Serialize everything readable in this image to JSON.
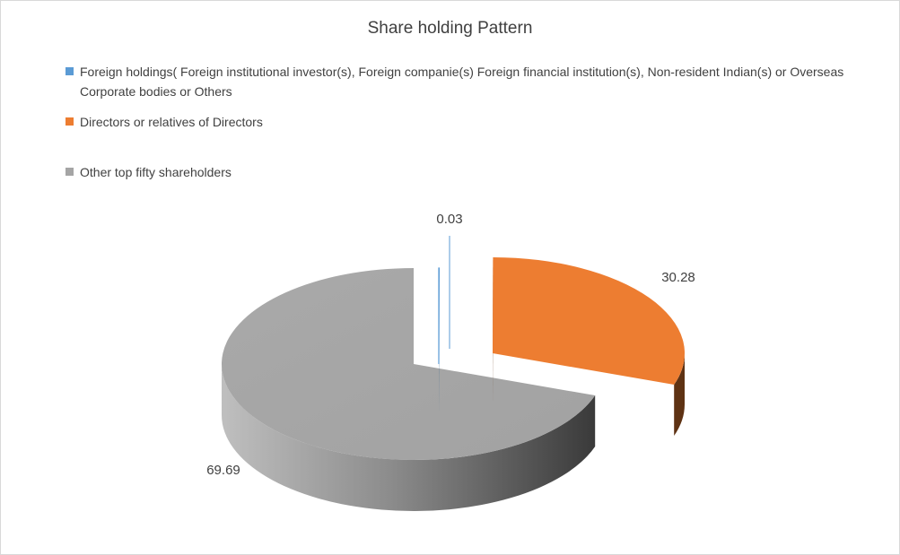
{
  "chart_data": {
    "type": "pie",
    "style": "3d-exploded",
    "title": "Share holding Pattern",
    "legend_position": "top-left",
    "slices": [
      {
        "label": "Foreign holdings( Foreign institutional investor(s),  Foreign companie(s)  Foreign financial institution(s),  Non-resident Indian(s) or Overseas Corporate bodies or Others",
        "value": 0.03,
        "value_label": "0.03",
        "color": "#5b9bd5"
      },
      {
        "label": "Directors or relatives of Directors",
        "value": 30.28,
        "value_label": "30.28",
        "color": "#ed7d31"
      },
      {
        "label": "Other top fifty shareholders",
        "value": 69.69,
        "value_label": "69.69",
        "color": "#a5a5a5"
      }
    ]
  }
}
